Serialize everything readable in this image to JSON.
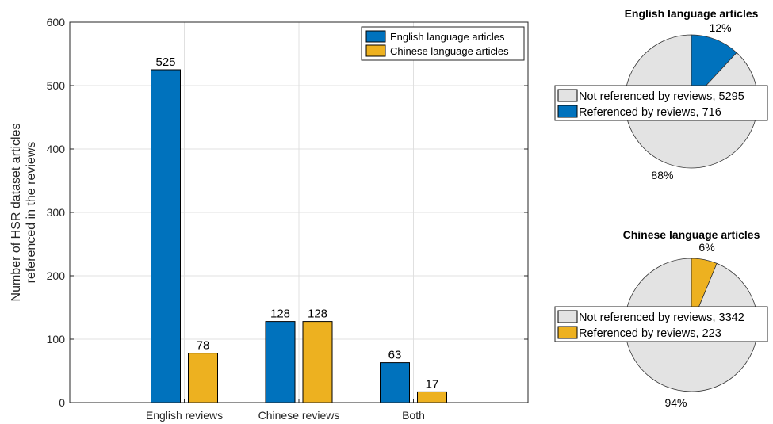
{
  "chart_data": [
    {
      "type": "bar",
      "title": "",
      "xlabel": "",
      "ylabel": "Number of HSR dataset articles referenced in the reviews",
      "ylabel_lines": [
        "Number of HSR dataset articles",
        "referenced in the reviews"
      ],
      "categories": [
        "English reviews",
        "Chinese reviews",
        "Both"
      ],
      "series": [
        {
          "name": "English language articles",
          "color": "#0072BD",
          "values": [
            525,
            128,
            63
          ]
        },
        {
          "name": "Chinese language articles",
          "color": "#EDB120",
          "values": [
            78,
            128,
            17
          ]
        }
      ],
      "ylim": [
        0,
        600
      ],
      "yticks": [
        0,
        100,
        200,
        300,
        400,
        500,
        600
      ],
      "grid": true,
      "legend_position": "top-right"
    },
    {
      "type": "pie",
      "title": "English language articles",
      "slices": [
        {
          "name": "Not referenced by reviews",
          "value": 5295,
          "percent_label": "88%",
          "color": "#E3E3E3"
        },
        {
          "name": "Referenced by reviews",
          "value": 716,
          "percent_label": "12%",
          "color": "#0072BD"
        }
      ],
      "legend_position": "center"
    },
    {
      "type": "pie",
      "title": "Chinese language articles",
      "slices": [
        {
          "name": "Not referenced by reviews",
          "value": 3342,
          "percent_label": "94%",
          "color": "#E3E3E3"
        },
        {
          "name": "Referenced by reviews",
          "value": 223,
          "percent_label": "6%",
          "color": "#EDB120"
        }
      ],
      "legend_position": "center"
    }
  ]
}
